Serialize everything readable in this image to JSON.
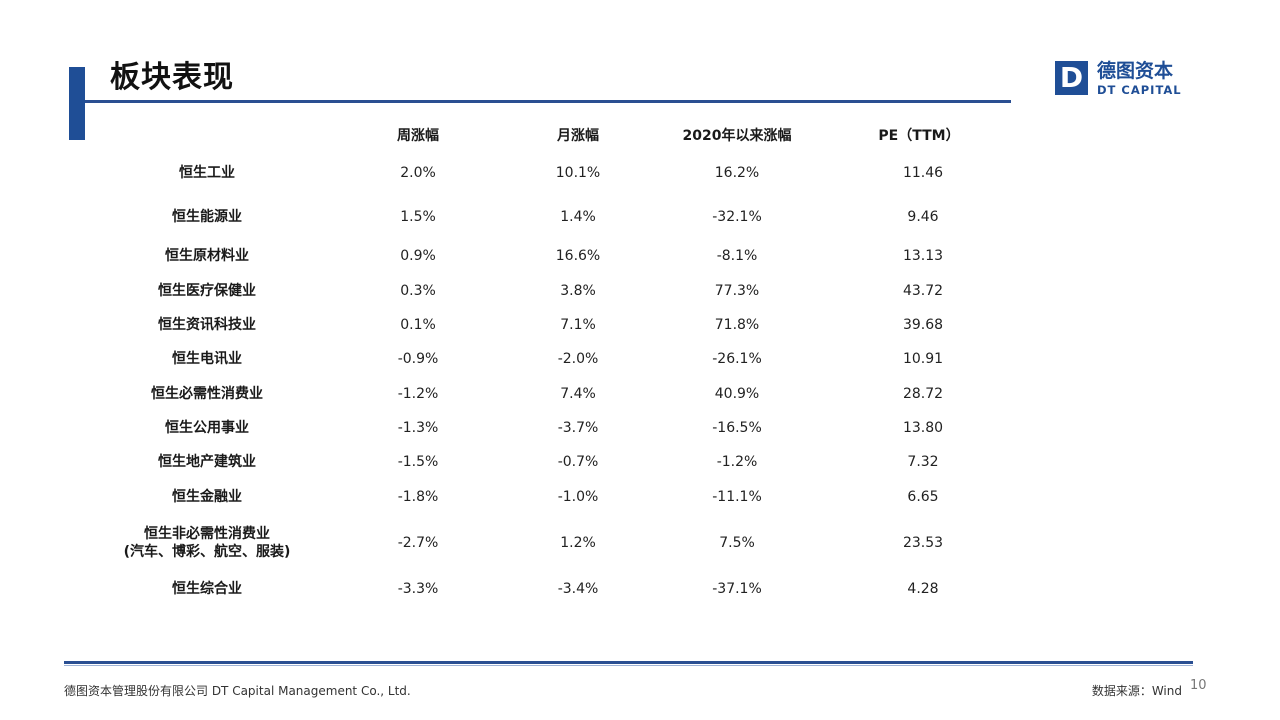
{
  "title": "板块表现",
  "logo": {
    "mark": "D",
    "cn": "德图资本",
    "en": "DT CAPITAL"
  },
  "table": {
    "headers": [
      "周涨幅",
      "月涨幅",
      "2020年以来涨幅",
      "PE（TTM）"
    ],
    "rows": [
      {
        "label": "恒生工业",
        "weekly": "2.0%",
        "monthly": "10.1%",
        "ytd": "16.2%",
        "pe": "11.46"
      },
      {
        "label": "恒生能源业",
        "weekly": "1.5%",
        "monthly": "1.4%",
        "ytd": "-32.1%",
        "pe": "9.46"
      },
      {
        "label": "恒生原材料业",
        "weekly": "0.9%",
        "monthly": "16.6%",
        "ytd": "-8.1%",
        "pe": "13.13"
      },
      {
        "label": "恒生医疗保健业",
        "weekly": "0.3%",
        "monthly": "3.8%",
        "ytd": "77.3%",
        "pe": "43.72"
      },
      {
        "label": "恒生资讯科技业",
        "weekly": "0.1%",
        "monthly": "7.1%",
        "ytd": "71.8%",
        "pe": "39.68"
      },
      {
        "label": "恒生电讯业",
        "weekly": "-0.9%",
        "monthly": "-2.0%",
        "ytd": "-26.1%",
        "pe": "10.91"
      },
      {
        "label": "恒生必需性消费业",
        "weekly": "-1.2%",
        "monthly": "7.4%",
        "ytd": "40.9%",
        "pe": "28.72"
      },
      {
        "label": "恒生公用事业",
        "weekly": "-1.3%",
        "monthly": "-3.7%",
        "ytd": "-16.5%",
        "pe": "13.80"
      },
      {
        "label": "恒生地产建筑业",
        "weekly": "-1.5%",
        "monthly": "-0.7%",
        "ytd": "-1.2%",
        "pe": "7.32"
      },
      {
        "label": "恒生金融业",
        "weekly": "-1.8%",
        "monthly": "-1.0%",
        "ytd": "-11.1%",
        "pe": "6.65"
      },
      {
        "label": "恒生非必需性消费业",
        "sublabel": "(汽车、博彩、航空、服装)",
        "weekly": "-2.7%",
        "monthly": "1.2%",
        "ytd": "7.5%",
        "pe": "23.53"
      },
      {
        "label": "恒生综合业",
        "weekly": "-3.3%",
        "monthly": "-3.4%",
        "ytd": "-37.1%",
        "pe": "4.28"
      }
    ]
  },
  "footer": {
    "company": "德图资本管理股份有限公司  DT Capital  Management  Co., Ltd.",
    "source": "数据来源：Wind",
    "page": "10"
  }
}
